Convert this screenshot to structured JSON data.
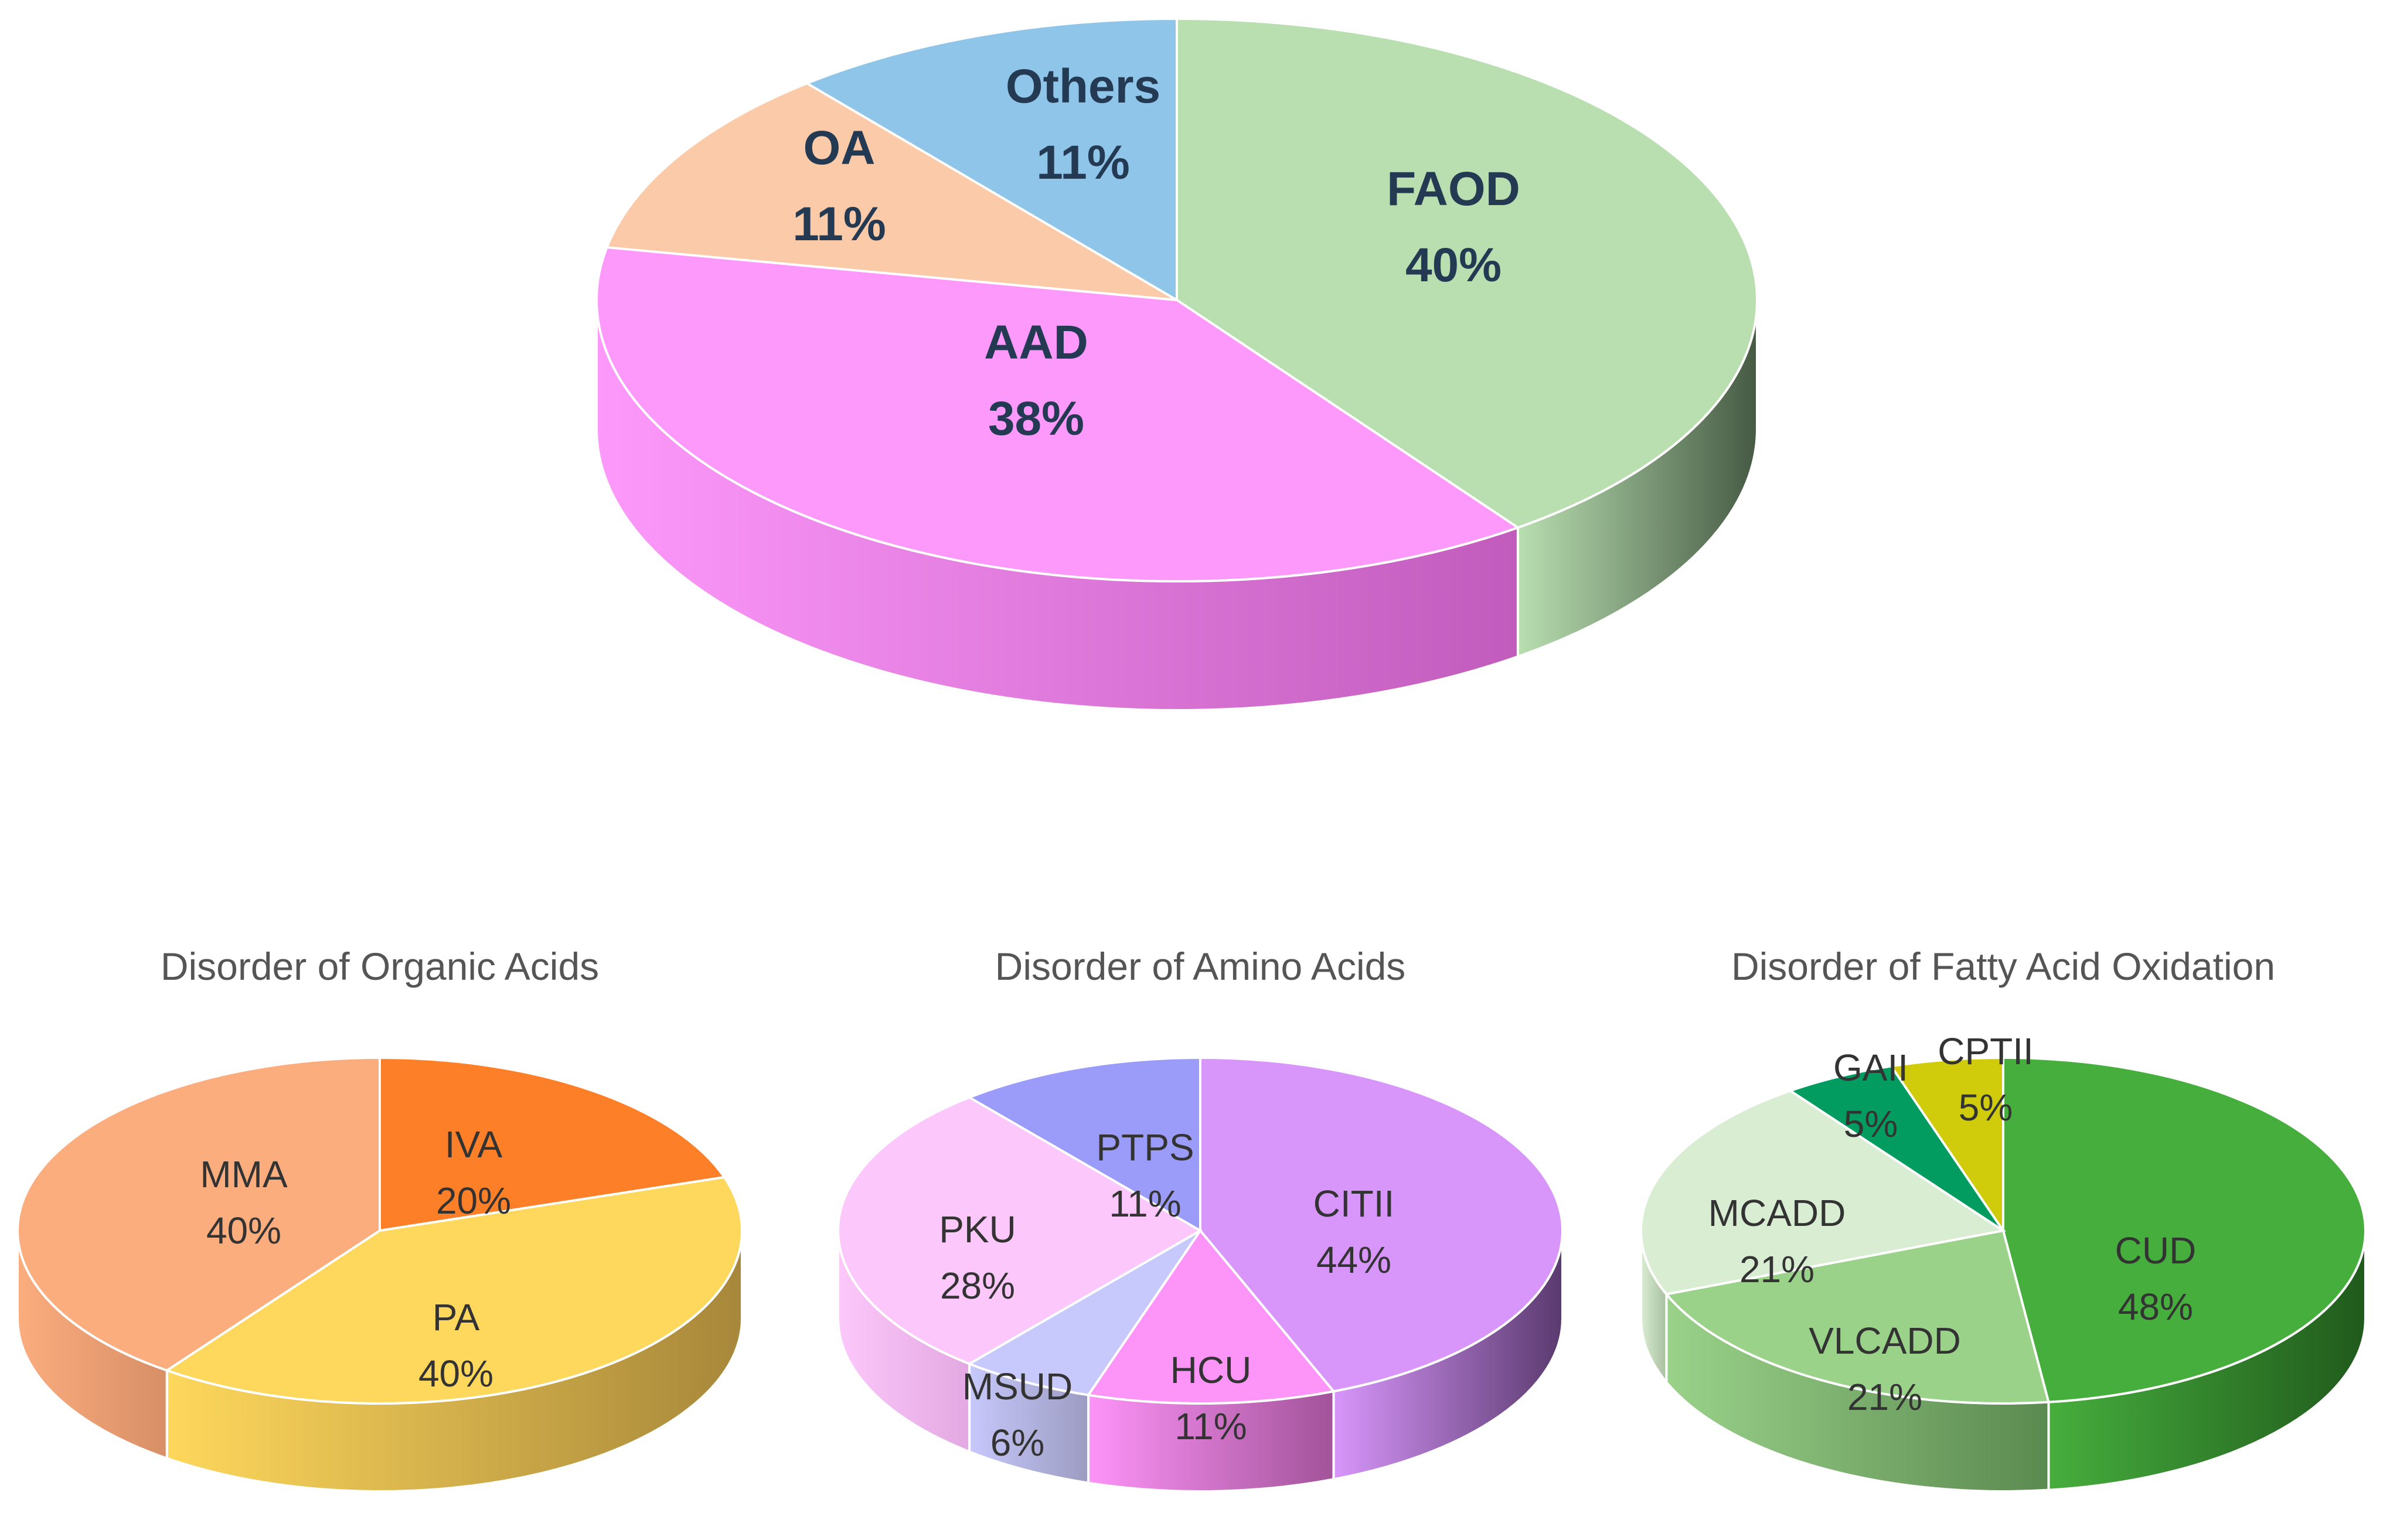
{
  "chart_data": [
    {
      "id": "overview",
      "type": "pie",
      "title": "",
      "start_label_style": "bold",
      "slices": [
        {
          "label": "FAOD",
          "value": 40,
          "pct_label": "40%",
          "color": "#b9dfb1",
          "side_color": "#465a44"
        },
        {
          "label": "AAD",
          "value": 38,
          "pct_label": "38%",
          "color": "#fd99fb",
          "side_color": "#c15bbc"
        },
        {
          "label": "OA",
          "value": 11,
          "pct_label": "11%",
          "color": "#fbcaa8",
          "side_color": "#b08c72"
        },
        {
          "label": "Others",
          "value": 11,
          "pct_label": "11%",
          "color": "#8fc5e8",
          "side_color": "#5f8ba3"
        }
      ]
    },
    {
      "id": "organic-acids",
      "type": "pie",
      "title": "Disorder of Organic Acids",
      "slices": [
        {
          "label": "IVA",
          "value": 20,
          "pct_label": "20%",
          "color": "#fd7f27",
          "side_color": "#b0561a"
        },
        {
          "label": "PA",
          "value": 40,
          "pct_label": "40%",
          "color": "#fed85c",
          "side_color": "#a7873a"
        },
        {
          "label": "MMA",
          "value": 40,
          "pct_label": "40%",
          "color": "#fbad7e",
          "side_color": "#d88f66"
        }
      ]
    },
    {
      "id": "amino-acids",
      "type": "pie",
      "title": "Disorder of Amino Acids",
      "slices": [
        {
          "label": "CITII",
          "value": 44,
          "pct_label": "44%",
          "color": "#d896fb",
          "side_color": "#5a3a6e"
        },
        {
          "label": "HCU",
          "value": 11,
          "pct_label": "11%",
          "color": "#fd94f8",
          "side_color": "#a25399"
        },
        {
          "label": "MSUD",
          "value": 6,
          "pct_label": "6%",
          "color": "#c7c8fb",
          "side_color": "#9c9cc2"
        },
        {
          "label": "PKU",
          "value": 28,
          "pct_label": "28%",
          "color": "#fcc8fb",
          "side_color": "#e3a8e1"
        },
        {
          "label": "PTPS",
          "value": 11,
          "pct_label": "11%",
          "color": "#9b9bf9",
          "side_color": "#6e6eb8"
        }
      ]
    },
    {
      "id": "fatty-acid-oxidation",
      "type": "pie",
      "title": "Disorder of Fatty Acid Oxidation",
      "slices": [
        {
          "label": "CUD",
          "value": 48,
          "pct_label": "48%",
          "color": "#46ae3d",
          "side_color": "#205a1c"
        },
        {
          "label": "VLCADD",
          "value": 21,
          "pct_label": "21%",
          "color": "#9ad28a",
          "side_color": "#5b8a50"
        },
        {
          "label": "MCADD",
          "value": 21,
          "pct_label": "21%",
          "color": "#d9edd2",
          "side_color": "#a9c0a0"
        },
        {
          "label": "GAII",
          "value": 5,
          "pct_label": "5%",
          "color": "#039c60",
          "side_color": "#026a41"
        },
        {
          "label": "CPTII",
          "value": 5,
          "pct_label": "5%",
          "color": "#d0cc0c",
          "side_color": "#9a9608"
        }
      ]
    }
  ]
}
